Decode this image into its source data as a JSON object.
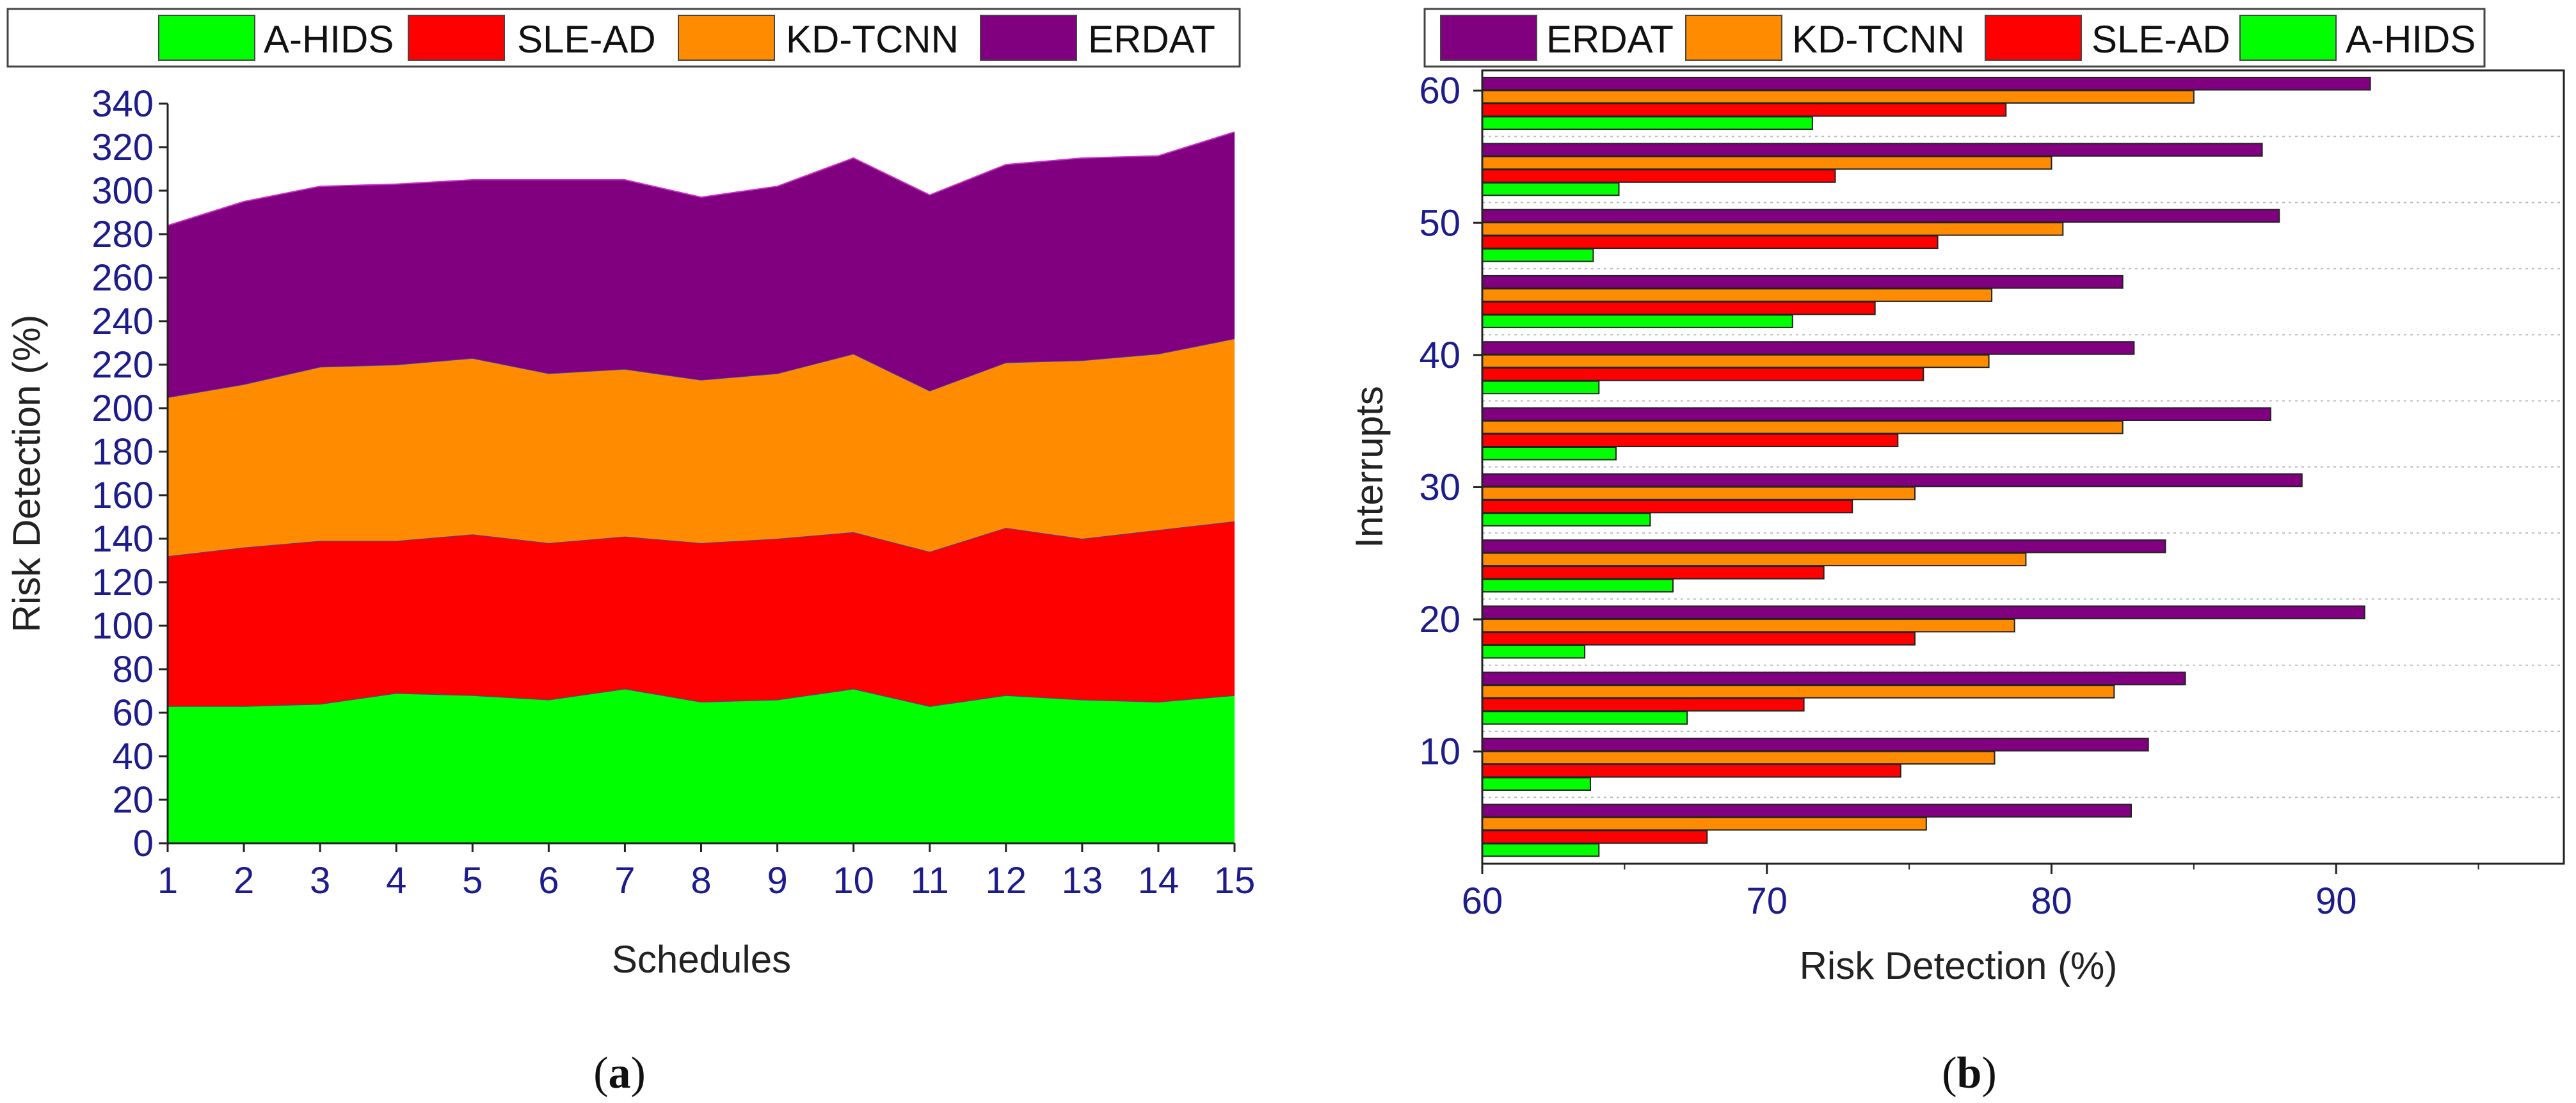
{
  "colors": {
    "A-HIDS": "#00ff00",
    "SLE-AD": "#ff0000",
    "KD-TCNN": "#ff8c00",
    "ERDAT": "#800080",
    "tick": "#1c1c8c"
  },
  "panel_labels": {
    "a": "a",
    "b": "b"
  },
  "chart_data": [
    {
      "id": "a",
      "type": "area",
      "stacked": true,
      "title": "",
      "xlabel": "Schedules",
      "ylabel": "Risk Detection (%)",
      "x": [
        1,
        2,
        3,
        4,
        5,
        6,
        7,
        8,
        9,
        10,
        11,
        12,
        13,
        14,
        15
      ],
      "ylim": [
        0,
        340
      ],
      "yticks": [
        0,
        20,
        40,
        60,
        80,
        100,
        120,
        140,
        160,
        180,
        200,
        220,
        240,
        260,
        280,
        300,
        320,
        340
      ],
      "legend": [
        "A-HIDS",
        "SLE-AD",
        "KD-TCNN",
        "ERDAT"
      ],
      "legend_position": "top",
      "series": [
        {
          "name": "A-HIDS",
          "values": [
            63,
            63,
            64,
            69,
            68,
            66,
            71,
            65,
            66,
            71,
            63,
            68,
            66,
            65,
            68
          ]
        },
        {
          "name": "SLE-AD",
          "values": [
            69,
            73,
            75,
            70,
            74,
            72,
            70,
            73,
            74,
            72,
            71,
            77,
            74,
            79,
            80
          ]
        },
        {
          "name": "KD-TCNN",
          "values": [
            73,
            75,
            80,
            81,
            81,
            78,
            77,
            75,
            76,
            82,
            74,
            76,
            82,
            81,
            84
          ]
        },
        {
          "name": "ERDAT",
          "values": [
            79,
            84,
            83,
            83,
            82,
            89,
            87,
            84,
            86,
            90,
            90,
            91,
            93,
            91,
            95
          ]
        }
      ]
    },
    {
      "id": "b",
      "type": "bar",
      "orientation": "horizontal",
      "title": "",
      "xlabel": "Risk Detection (%)",
      "ylabel": "Interrupts",
      "categories": [
        5,
        10,
        15,
        20,
        25,
        30,
        35,
        40,
        45,
        50,
        55,
        60
      ],
      "ytick_labels": [
        "10",
        "20",
        "30",
        "40",
        "50",
        "60"
      ],
      "xticks": [
        60,
        70,
        80,
        90
      ],
      "xlim": [
        60,
        98
      ],
      "legend": [
        "ERDAT",
        "KD-TCNN",
        "SLE-AD",
        "A-HIDS"
      ],
      "legend_position": "top",
      "series": [
        {
          "name": "ERDAT",
          "values": [
            82.8,
            83.4,
            84.7,
            91,
            84,
            88.8,
            87.7,
            82.9,
            82.5,
            88,
            87.4,
            91.2
          ]
        },
        {
          "name": "KD-TCNN",
          "values": [
            75.6,
            78,
            82.2,
            78.7,
            79.1,
            75.2,
            82.5,
            77.8,
            77.9,
            80.4,
            80,
            85
          ]
        },
        {
          "name": "SLE-AD",
          "values": [
            67.9,
            74.7,
            71.3,
            75.2,
            72,
            73,
            74.6,
            75.5,
            73.8,
            76,
            72.4,
            78.4
          ]
        },
        {
          "name": "A-HIDS",
          "values": [
            64.1,
            63.8,
            67.2,
            63.6,
            66.7,
            65.9,
            64.7,
            64.1,
            70.9,
            63.9,
            64.8,
            71.6
          ]
        }
      ]
    }
  ]
}
